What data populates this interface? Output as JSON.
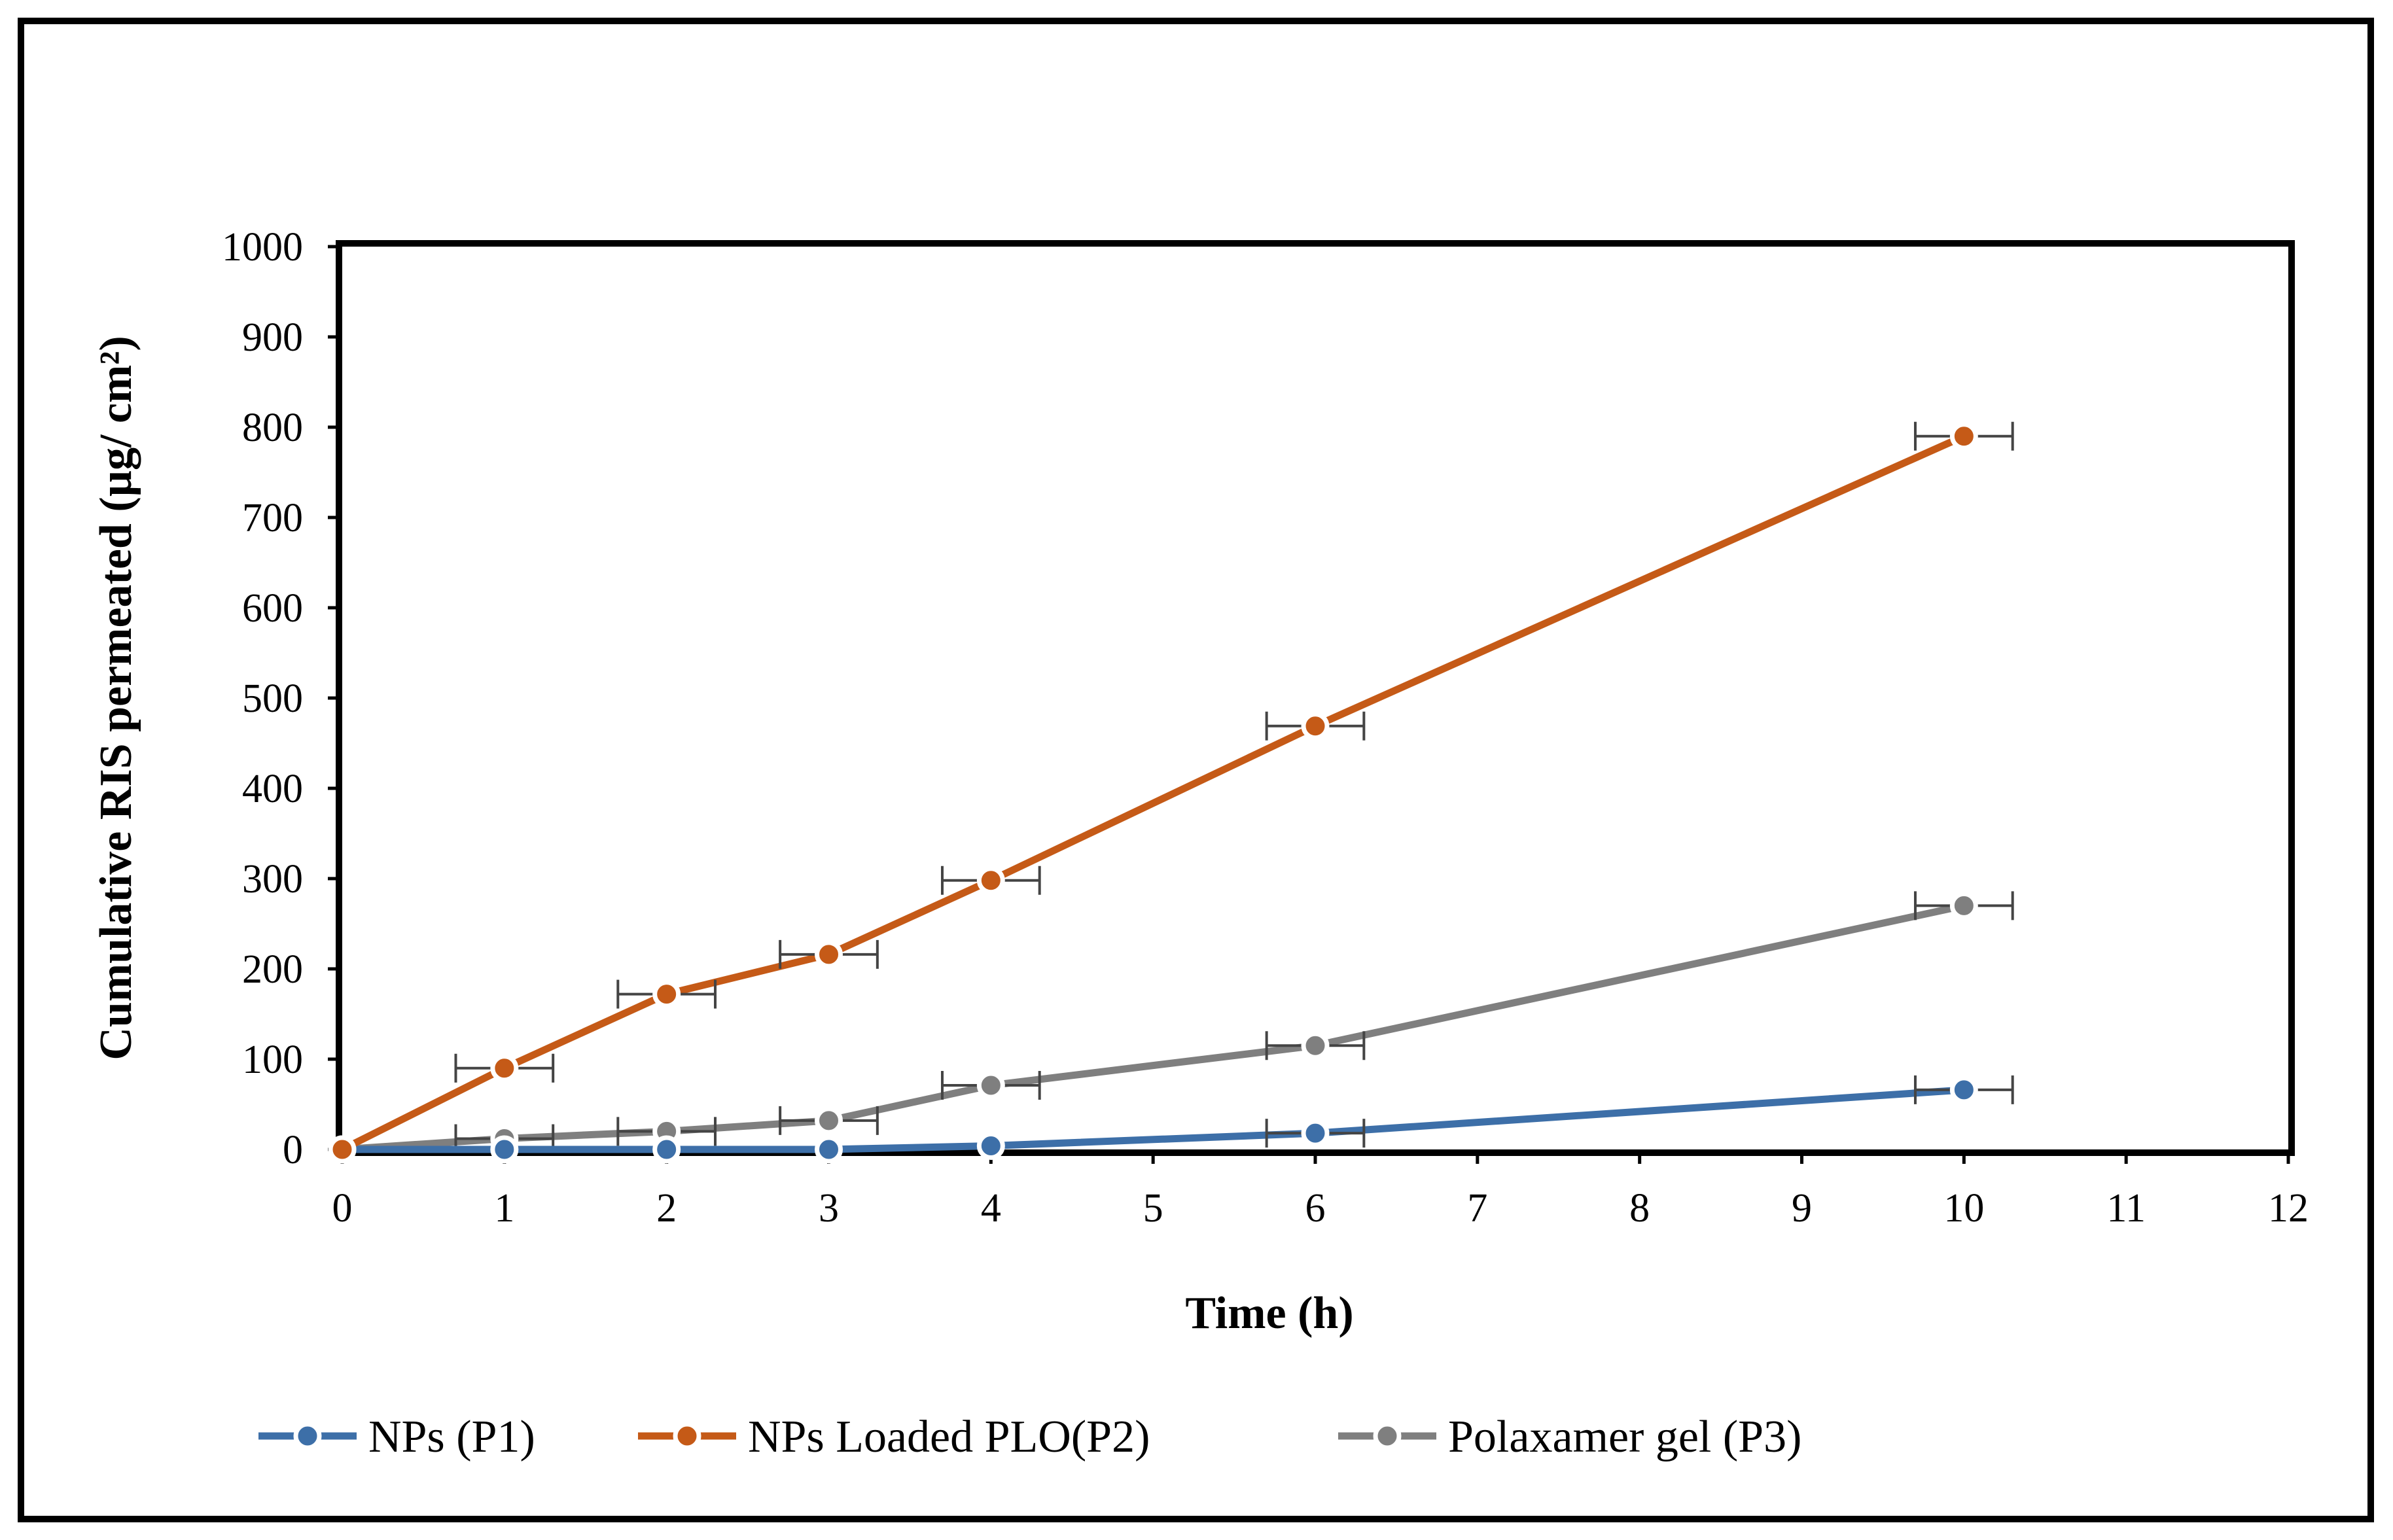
{
  "chart_data": {
    "type": "line",
    "title": "",
    "xlabel": "Time (h)",
    "ylabel": "Cumulative RIS permeated (µg/ cm²)",
    "xlim": [
      0,
      12
    ],
    "ylim": [
      0,
      1000
    ],
    "x_ticks": [
      0,
      1,
      2,
      3,
      4,
      5,
      6,
      7,
      8,
      9,
      10,
      11,
      12
    ],
    "y_ticks": [
      0,
      100,
      200,
      300,
      400,
      500,
      600,
      700,
      800,
      900,
      1000
    ],
    "grid": false,
    "legend_position": "bottom",
    "x": [
      0,
      1,
      2,
      3,
      4,
      6,
      10
    ],
    "series": [
      {
        "name": "NPs (P1)",
        "color": "#3d6fa8",
        "values": [
          0,
          0,
          0,
          0,
          4,
          18,
          66
        ],
        "errors": [
          0,
          0,
          0,
          0,
          0,
          0.3,
          0.3
        ]
      },
      {
        "name": "NPs Loaded PLO(P2)",
        "color": "#c55a17",
        "values": [
          0,
          90,
          172,
          216,
          298,
          469,
          790
        ],
        "errors": [
          0,
          0.3,
          0.3,
          0.3,
          0.3,
          0.3,
          0.3
        ]
      },
      {
        "name": "Polaxamer gel (P3)",
        "color": "#7f7f7f",
        "values": [
          0,
          12,
          20,
          32,
          71,
          115,
          270
        ],
        "errors": [
          0,
          0.3,
          0.3,
          0.3,
          0.3,
          0.3,
          0.3
        ]
      }
    ]
  }
}
